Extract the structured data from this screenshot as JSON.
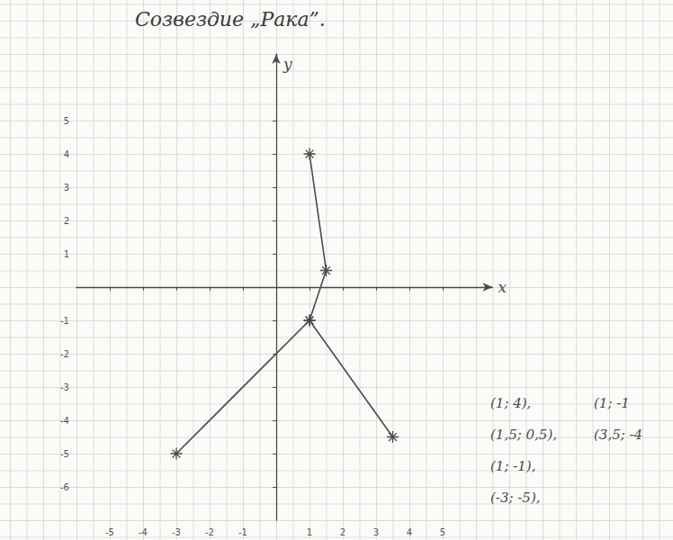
{
  "chart_data": {
    "type": "line",
    "title": "Созвездие „Рака”.",
    "x": [
      1,
      1.5,
      1,
      -3,
      null,
      1,
      3.5
    ],
    "y": [
      4,
      0.5,
      -1,
      -5,
      null,
      -1,
      -4.5
    ],
    "color": "#4a4a4a",
    "marker": "asterisk",
    "line_style": "solid",
    "xlabel": "x",
    "ylabel": "y",
    "xlim": [
      -6,
      6.5
    ],
    "xticks": [
      -5,
      -4,
      -3,
      -2,
      -1,
      1,
      2,
      3,
      4,
      5
    ],
    "ylim": [
      -7,
      7
    ],
    "yticks": [
      -6,
      -5,
      -4,
      -3,
      -2,
      -1,
      1,
      2,
      3,
      4,
      5
    ],
    "annotations": [
      [
        "(1; 4),",
        "(1; -1"
      ],
      [
        "(1,5; 0,5),",
        "(3,5; -4"
      ],
      [
        "(1; -1),"
      ],
      [
        "(-3; -5),"
      ]
    ]
  }
}
